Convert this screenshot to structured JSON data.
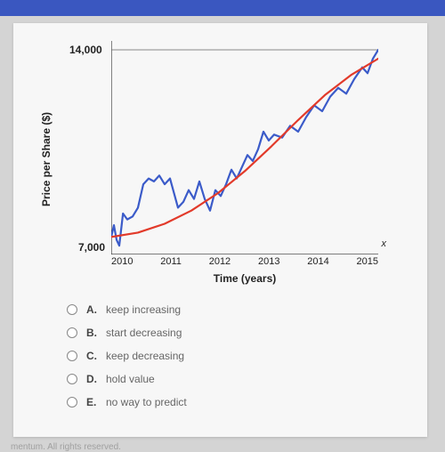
{
  "chart": {
    "type": "line",
    "title": "",
    "xlabel": "Time (years)",
    "ylabel": "Price per Share ($)",
    "x_variable": "x",
    "xlim": [
      2010,
      2015
    ],
    "ylim": [
      7000,
      14000
    ],
    "xticks": [
      "2010",
      "2011",
      "2012",
      "2013",
      "2014",
      "2015"
    ],
    "ytick_top": "14,000",
    "ytick_bottom": "7,000",
    "background_color": "#f7f7f7",
    "axis_color": "#333333",
    "grid_top_color": "#666666",
    "series": [
      {
        "name": "stock-price",
        "color": "#3b5bc9",
        "width": 2.2,
        "points": [
          [
            2010.0,
            7600
          ],
          [
            2010.05,
            8000
          ],
          [
            2010.1,
            7500
          ],
          [
            2010.15,
            7300
          ],
          [
            2010.22,
            8400
          ],
          [
            2010.3,
            8200
          ],
          [
            2010.4,
            8300
          ],
          [
            2010.5,
            8600
          ],
          [
            2010.6,
            9400
          ],
          [
            2010.7,
            9600
          ],
          [
            2010.8,
            9500
          ],
          [
            2010.9,
            9700
          ],
          [
            2011.0,
            9400
          ],
          [
            2011.1,
            9600
          ],
          [
            2011.25,
            8600
          ],
          [
            2011.35,
            8800
          ],
          [
            2011.45,
            9200
          ],
          [
            2011.55,
            8900
          ],
          [
            2011.65,
            9500
          ],
          [
            2011.75,
            8900
          ],
          [
            2011.85,
            8500
          ],
          [
            2011.95,
            9200
          ],
          [
            2012.05,
            9000
          ],
          [
            2012.15,
            9400
          ],
          [
            2012.25,
            9900
          ],
          [
            2012.35,
            9600
          ],
          [
            2012.45,
            10000
          ],
          [
            2012.55,
            10400
          ],
          [
            2012.65,
            10200
          ],
          [
            2012.75,
            10600
          ],
          [
            2012.85,
            11200
          ],
          [
            2012.95,
            10900
          ],
          [
            2013.05,
            11100
          ],
          [
            2013.2,
            11000
          ],
          [
            2013.35,
            11400
          ],
          [
            2013.5,
            11200
          ],
          [
            2013.65,
            11700
          ],
          [
            2013.8,
            12100
          ],
          [
            2013.95,
            11900
          ],
          [
            2014.1,
            12400
          ],
          [
            2014.25,
            12700
          ],
          [
            2014.4,
            12500
          ],
          [
            2014.55,
            13000
          ],
          [
            2014.7,
            13400
          ],
          [
            2014.8,
            13200
          ],
          [
            2014.9,
            13700
          ],
          [
            2015.0,
            14000
          ],
          [
            2015.1,
            13900
          ],
          [
            2015.2,
            14000
          ]
        ]
      },
      {
        "name": "trend-line",
        "color": "#e23a2a",
        "width": 2.2,
        "points": [
          [
            2010.0,
            7600
          ],
          [
            2010.5,
            7750
          ],
          [
            2011.0,
            8050
          ],
          [
            2011.5,
            8500
          ],
          [
            2012.0,
            9100
          ],
          [
            2012.5,
            9850
          ],
          [
            2013.0,
            10700
          ],
          [
            2013.5,
            11600
          ],
          [
            2014.0,
            12450
          ],
          [
            2014.5,
            13150
          ],
          [
            2015.0,
            13700
          ]
        ]
      }
    ]
  },
  "question": {
    "options": [
      {
        "letter": "A.",
        "text": "keep increasing"
      },
      {
        "letter": "B.",
        "text": "start decreasing"
      },
      {
        "letter": "C.",
        "text": "keep decreasing"
      },
      {
        "letter": "D.",
        "text": "hold value"
      },
      {
        "letter": "E.",
        "text": "no way to predict"
      }
    ]
  },
  "footer_text": "mentum. All rights reserved."
}
